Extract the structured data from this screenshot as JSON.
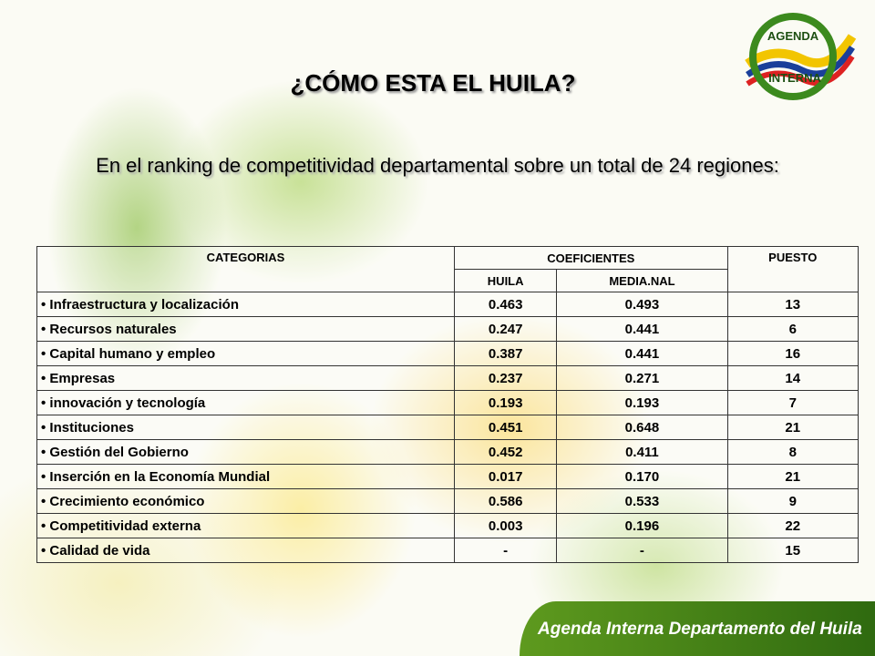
{
  "header": {
    "title": "¿CÓMO ESTA EL HUILA?",
    "subtitle": "En el ranking de competitividad departamental sobre un total de 24 regiones:"
  },
  "logo": {
    "line1": "AGENDA",
    "line2": "INTERNA"
  },
  "table": {
    "headers": {
      "categorias": "CATEGORIAS",
      "coeficientes": "COEFICIENTES",
      "puesto": "PUESTO",
      "huila": "HUILA",
      "media": "MEDIA.NAL"
    },
    "rows": [
      [
        "• Infraestructura y localización",
        "0.463",
        "0.493",
        "13"
      ],
      [
        "• Recursos naturales",
        "0.247",
        "0.441",
        "6"
      ],
      [
        "• Capital humano y empleo",
        "0.387",
        "0.441",
        "16"
      ],
      [
        "• Empresas",
        "0.237",
        "0.271",
        "14"
      ],
      [
        "• innovación y tecnología",
        "0.193",
        "0.193",
        "7"
      ],
      [
        "• Instituciones",
        "0.451",
        "0.648",
        "21"
      ],
      [
        "• Gestión del Gobierno",
        "0.452",
        "0.411",
        "8"
      ],
      [
        "• Inserción en la Economía Mundial",
        "0.017",
        "0.170",
        "21"
      ],
      [
        "• Crecimiento económico",
        "0.586",
        "0.533",
        "9"
      ],
      [
        "• Competitividad externa",
        "0.003",
        "0.196",
        "22"
      ],
      [
        "• Calidad de vida",
        "-",
        "-",
        "15"
      ]
    ]
  },
  "footer": {
    "text": "Agenda Interna Departamento del Huila"
  }
}
